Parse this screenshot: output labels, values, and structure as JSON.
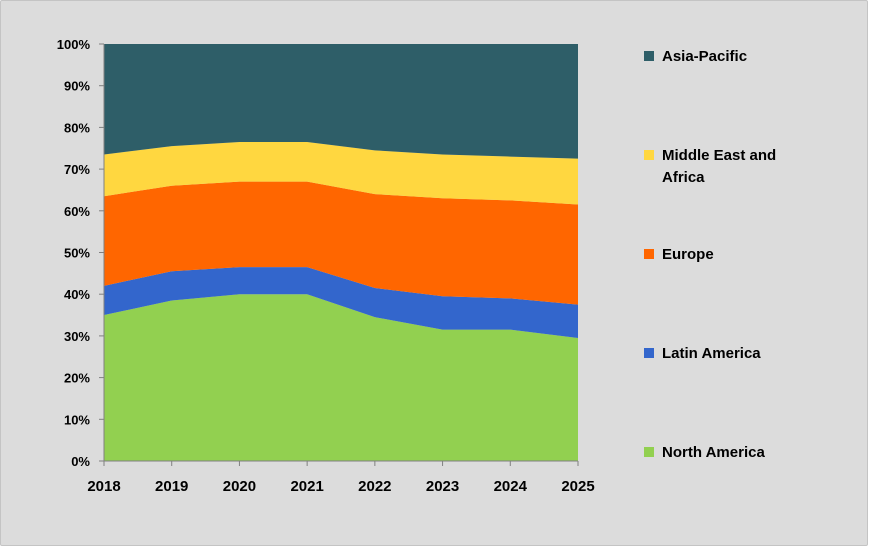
{
  "chart_data": {
    "type": "area",
    "stacked": true,
    "normalized": true,
    "x": [
      "2018",
      "2019",
      "2020",
      "2021",
      "2022",
      "2023",
      "2024",
      "2025"
    ],
    "ylim": [
      0,
      100
    ],
    "y_ticks": [
      "0%",
      "10%",
      "20%",
      "30%",
      "40%",
      "50%",
      "60%",
      "70%",
      "80%",
      "90%",
      "100%"
    ],
    "legend_position": "right",
    "grid": false,
    "series": [
      {
        "name": "North America",
        "color": "#92d050",
        "values": [
          35,
          38.5,
          40,
          40,
          34.5,
          31.5,
          31.5,
          29.5
        ]
      },
      {
        "name": "Latin America",
        "color": "#3366cc",
        "values": [
          7,
          7,
          6.5,
          6.5,
          7,
          8,
          7.5,
          8
        ]
      },
      {
        "name": "Europe",
        "color": "#ff6600",
        "values": [
          21.5,
          20.5,
          20.5,
          20.5,
          22.5,
          23.5,
          23.5,
          24
        ]
      },
      {
        "name": "Middle East and Africa",
        "color": "#ffd740",
        "values": [
          10,
          9.5,
          9.5,
          9.5,
          10.5,
          10.5,
          10.5,
          11
        ]
      },
      {
        "name": "Asia-Pacific",
        "color": "#2e5e68",
        "values": [
          26.5,
          24.5,
          23.5,
          23.5,
          25.5,
          26.5,
          27,
          27.5
        ]
      }
    ]
  }
}
